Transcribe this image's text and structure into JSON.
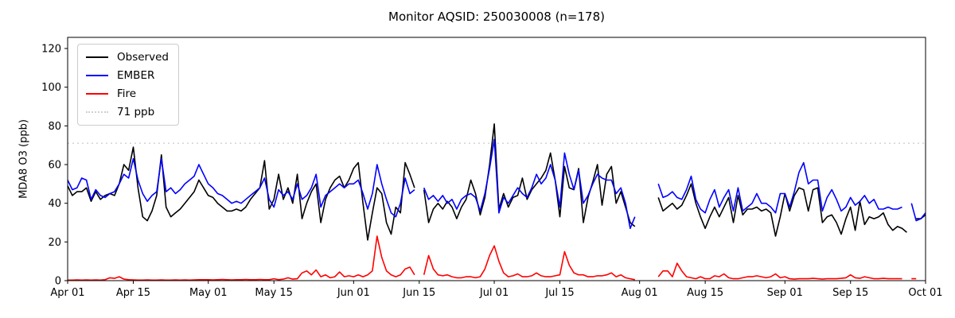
{
  "chart_data": {
    "type": "line",
    "title": "Monitor AQSID: 250030008 (n=178)",
    "xlabel": "",
    "ylabel": "MDA8 O3 (ppb)",
    "ylim": [
      0,
      125.8
    ],
    "grid": false,
    "legend_position": "upper left",
    "axis_color": "#000000",
    "background_color": "#ffffff",
    "x_axis_type": "date",
    "x_range": [
      "Apr 01",
      "Oct 01"
    ],
    "n_days": 184,
    "y_ticks": [
      0,
      20,
      40,
      60,
      80,
      100,
      120
    ],
    "x_ticks": [
      {
        "label": "Apr 01",
        "day": 0
      },
      {
        "label": "Apr 15",
        "day": 14
      },
      {
        "label": "May 01",
        "day": 30
      },
      {
        "label": "May 15",
        "day": 44
      },
      {
        "label": "Jun 01",
        "day": 61
      },
      {
        "label": "Jun 15",
        "day": 75
      },
      {
        "label": "Jul 01",
        "day": 91
      },
      {
        "label": "Jul 15",
        "day": 105
      },
      {
        "label": "Aug 01",
        "day": 122
      },
      {
        "label": "Aug 15",
        "day": 136
      },
      {
        "label": "Sep 01",
        "day": 153
      },
      {
        "label": "Sep 15",
        "day": 167
      },
      {
        "label": "Oct 01",
        "day": 183
      }
    ],
    "threshold": {
      "label": "71 ppb",
      "value": 71,
      "color": "#d0d0d0",
      "style": "dotted"
    },
    "legend": [
      {
        "name": "Observed",
        "color": "#000000",
        "style": "solid"
      },
      {
        "name": "EMBER",
        "color": "#0000ff",
        "style": "solid"
      },
      {
        "name": "Fire",
        "color": "#ff0000",
        "style": "solid"
      },
      {
        "name": "71 ppb",
        "color": "#d0d0d0",
        "style": "dotted"
      }
    ],
    "series": [
      {
        "name": "Observed",
        "color": "#000000",
        "values": [
          49,
          44,
          46,
          46,
          48,
          41,
          46,
          42,
          44,
          45,
          44,
          50,
          60,
          57,
          69,
          48,
          33,
          31,
          36,
          44,
          65,
          38,
          33,
          35,
          37,
          40,
          43,
          46,
          52,
          48,
          44,
          43,
          40,
          38,
          36,
          36,
          37,
          36,
          38,
          42,
          45,
          48,
          62,
          37,
          42,
          55,
          42,
          48,
          40,
          55,
          32,
          40,
          46,
          50,
          30,
          42,
          48,
          52,
          54,
          48,
          52,
          58,
          61,
          40,
          21,
          35,
          48,
          45,
          30,
          24,
          38,
          35,
          61,
          55,
          48,
          null,
          47,
          30,
          37,
          40,
          37,
          41,
          38,
          32,
          38,
          42,
          52,
          45,
          34,
          43,
          60,
          81,
          37,
          45,
          38,
          43,
          44,
          53,
          42,
          47,
          50,
          53,
          57,
          66,
          52,
          33,
          59,
          48,
          47,
          58,
          30,
          43,
          51,
          60,
          39,
          55,
          59,
          40,
          46,
          38,
          30,
          28,
          null,
          null,
          null,
          null,
          43,
          36,
          38,
          40,
          37,
          39,
          44,
          50,
          40,
          33,
          27,
          33,
          38,
          33,
          38,
          43,
          30,
          44,
          34,
          37,
          37,
          38,
          36,
          37,
          35,
          23,
          33,
          45,
          36,
          44,
          48,
          47,
          36,
          47,
          48,
          30,
          33,
          34,
          30,
          24,
          32,
          38,
          26,
          41,
          29,
          33,
          32,
          33,
          35,
          29,
          26,
          28,
          27,
          25,
          null,
          32,
          32,
          34
        ]
      },
      {
        "name": "EMBER",
        "color": "#0000ff",
        "values": [
          52,
          47,
          48,
          53,
          52,
          42,
          47,
          44,
          43,
          45,
          46,
          50,
          55,
          53,
          63,
          52,
          45,
          41,
          44,
          46,
          63,
          46,
          48,
          45,
          47,
          50,
          52,
          54,
          60,
          55,
          50,
          48,
          45,
          44,
          42,
          40,
          41,
          40,
          42,
          44,
          46,
          48,
          53,
          42,
          38,
          47,
          44,
          46,
          42,
          50,
          42,
          44,
          48,
          55,
          38,
          44,
          46,
          48,
          50,
          48,
          50,
          50,
          52,
          45,
          37,
          45,
          60,
          50,
          42,
          35,
          33,
          40,
          53,
          45,
          47,
          null,
          48,
          42,
          44,
          41,
          44,
          40,
          42,
          37,
          42,
          44,
          45,
          43,
          36,
          45,
          58,
          73,
          35,
          43,
          40,
          44,
          48,
          45,
          43,
          48,
          55,
          50,
          53,
          60,
          52,
          38,
          66,
          55,
          47,
          57,
          40,
          44,
          50,
          55,
          53,
          52,
          52,
          45,
          48,
          40,
          27,
          33,
          null,
          null,
          null,
          null,
          50,
          43,
          44,
          46,
          43,
          42,
          47,
          54,
          42,
          37,
          35,
          42,
          47,
          38,
          43,
          47,
          36,
          48,
          36,
          38,
          40,
          45,
          40,
          40,
          38,
          35,
          45,
          45,
          38,
          46,
          56,
          61,
          50,
          52,
          52,
          36,
          43,
          47,
          42,
          36,
          38,
          43,
          39,
          41,
          44,
          40,
          42,
          37,
          37,
          38,
          37,
          37,
          38,
          null,
          40,
          31,
          32,
          35
        ]
      },
      {
        "name": "Fire",
        "color": "#ff0000",
        "values": [
          0.3,
          0.3,
          0.4,
          0.3,
          0.4,
          0.3,
          0.4,
          0.3,
          0.5,
          1.5,
          1.2,
          2,
          0.8,
          0.5,
          0.4,
          0.3,
          0.3,
          0.4,
          0.3,
          0.3,
          0.4,
          0.3,
          0.3,
          0.4,
          0.3,
          0.4,
          0.3,
          0.4,
          0.5,
          0.5,
          0.5,
          0.4,
          0.5,
          0.6,
          0.5,
          0.4,
          0.5,
          0.5,
          0.6,
          0.5,
          0.5,
          0.6,
          0.5,
          0.5,
          1,
          0.5,
          0.8,
          1.5,
          0.8,
          1,
          4,
          5,
          3,
          5.5,
          2,
          3,
          1.5,
          2,
          4.5,
          2,
          2.5,
          2,
          3,
          2,
          3,
          5,
          23,
          12,
          5,
          3,
          2,
          3,
          6,
          7,
          3,
          null,
          3,
          13,
          6,
          3,
          2.5,
          3,
          2,
          1.5,
          1.5,
          2,
          2,
          1.5,
          2,
          6,
          13,
          18,
          10,
          4,
          2,
          2.5,
          3.5,
          2,
          2,
          2.5,
          4,
          2.5,
          2,
          2,
          2.5,
          3,
          15,
          8,
          4,
          3,
          3,
          2,
          2,
          2.5,
          2.5,
          3,
          4,
          2,
          3,
          1.5,
          1,
          0.5,
          null,
          null,
          null,
          null,
          2,
          5,
          5,
          2,
          9,
          5,
          2,
          1.5,
          1,
          2,
          1,
          1,
          2.5,
          2,
          3.5,
          1.5,
          1,
          1,
          1.5,
          2,
          2,
          2.5,
          2,
          1.5,
          2,
          3.5,
          1.5,
          2,
          1,
          0.8,
          1,
          1,
          1,
          1.2,
          1,
          0.8,
          1,
          1,
          1,
          1.2,
          1.5,
          3,
          1.5,
          1.2,
          2,
          1.5,
          1,
          1,
          1.2,
          1,
          1,
          1,
          1,
          null,
          1,
          1,
          null,
          null
        ]
      }
    ]
  }
}
